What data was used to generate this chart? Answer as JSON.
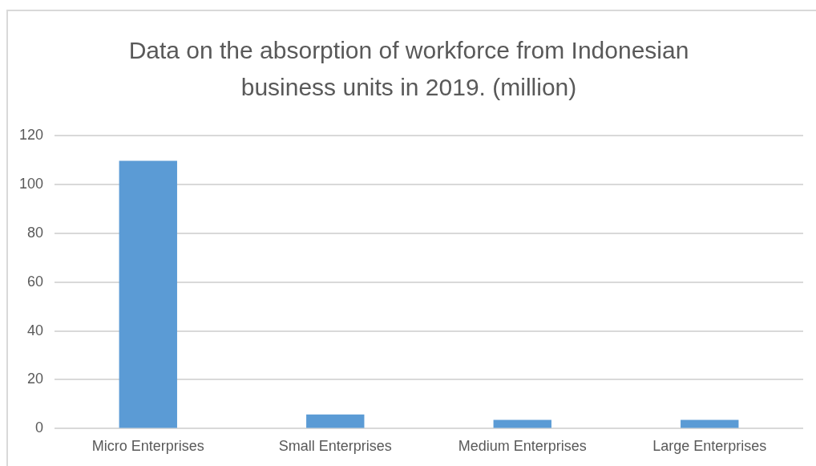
{
  "chart_data": {
    "type": "bar",
    "title": "Data on the absorption of workforce from Indonesian business units in 2019. (million)",
    "categories": [
      "Micro Enterprises",
      "Small Enterprises",
      "Medium Enterprises",
      "Large Enterprises"
    ],
    "values": [
      109.6,
      5.8,
      3.6,
      3.6
    ],
    "color": "#5b9bd5",
    "ylim": [
      0,
      120
    ],
    "yticks": [
      0,
      20,
      40,
      60,
      80,
      100,
      120
    ],
    "grid": "y"
  }
}
